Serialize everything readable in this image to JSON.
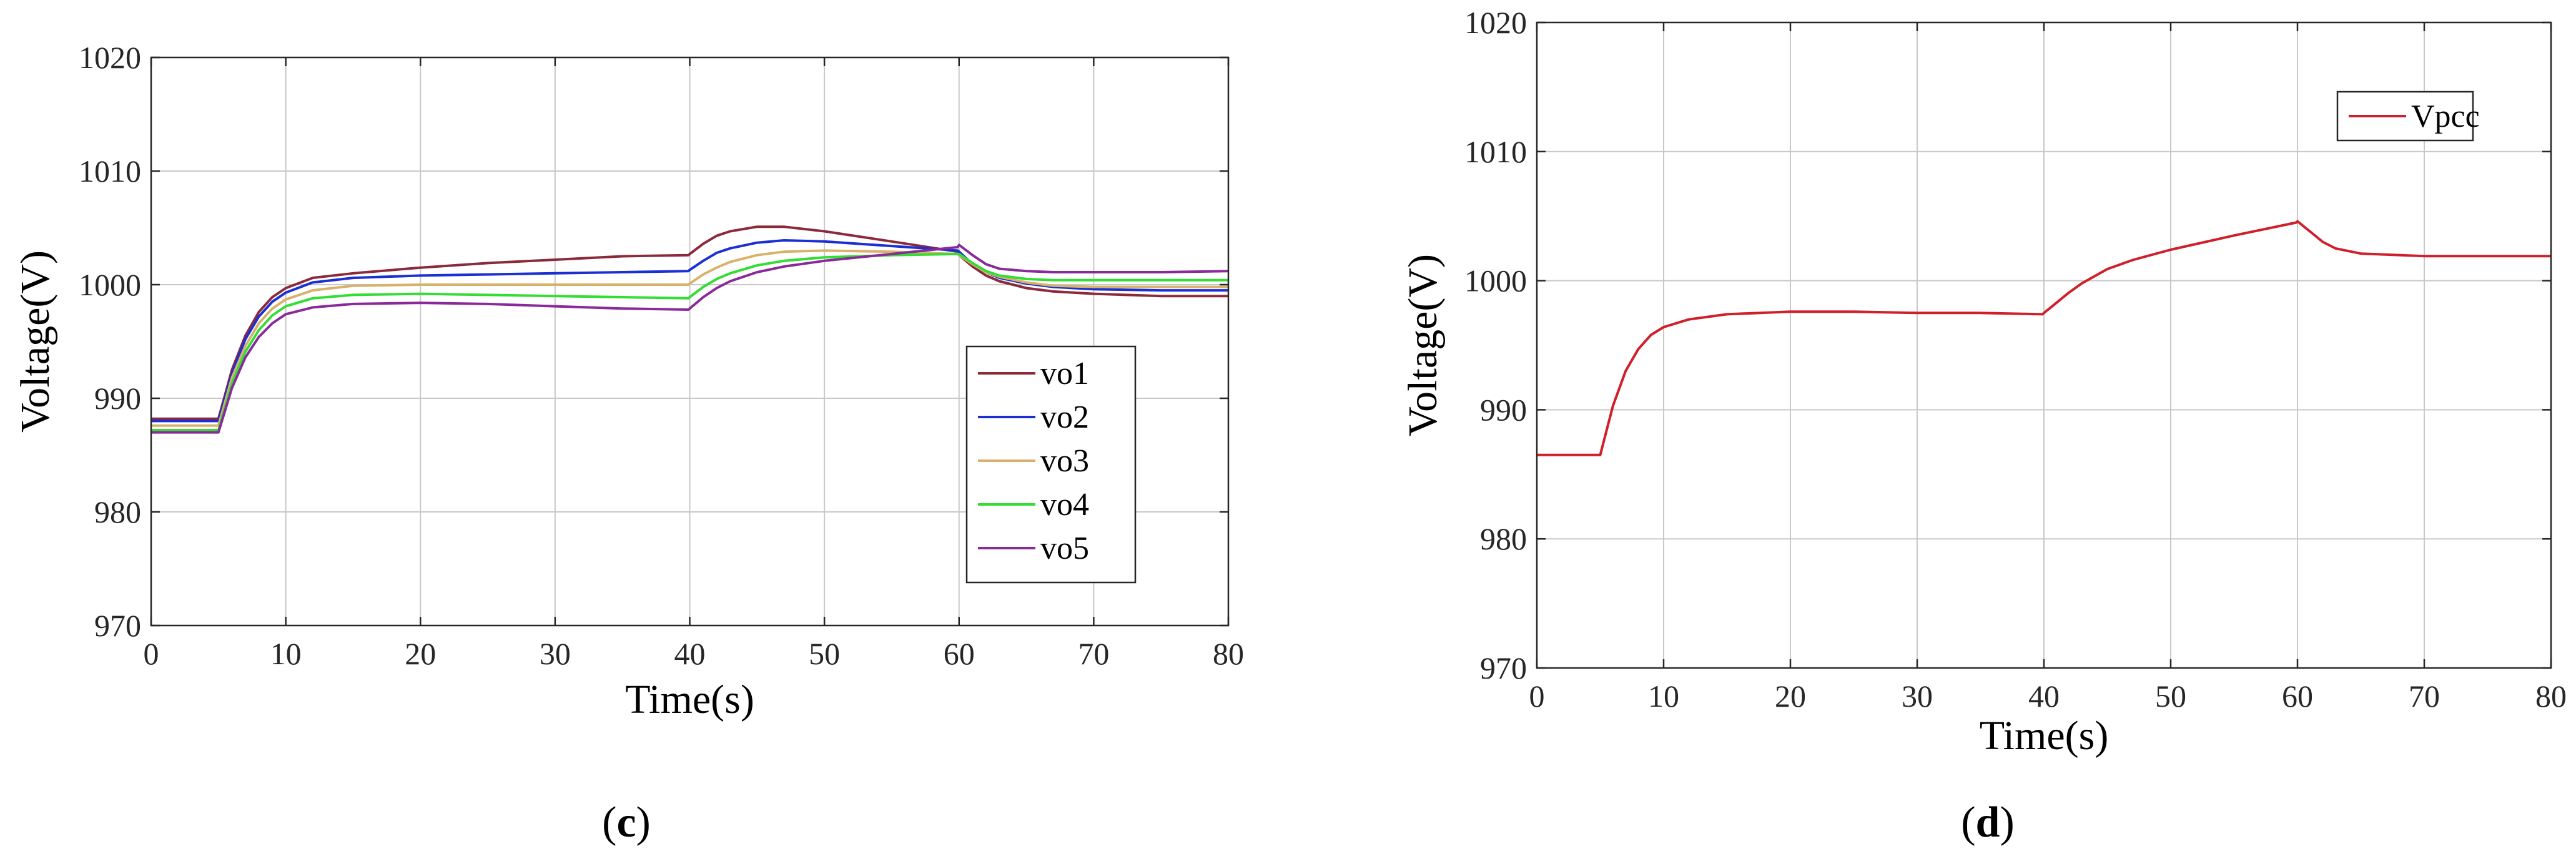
{
  "chart_data": [
    {
      "type": "line",
      "panel_label": "c",
      "title": "",
      "xlabel": "Time(s)",
      "ylabel": "Voltage(V)",
      "xlim": [
        0,
        80
      ],
      "ylim": [
        970,
        1020
      ],
      "xticks": [
        "0",
        "10",
        "20",
        "30",
        "40",
        "50",
        "60",
        "70",
        "80"
      ],
      "yticks": [
        "970",
        "980",
        "990",
        "1000",
        "1010",
        "1020"
      ],
      "grid": true,
      "legend_position": "center-right",
      "x": [
        0,
        4.9,
        5,
        6,
        7,
        8,
        9,
        10,
        12,
        15,
        20,
        25,
        30,
        35,
        39.9,
        40,
        41,
        42,
        43,
        45,
        47,
        50,
        55,
        59.9,
        60,
        61,
        62,
        63,
        65,
        67,
        70,
        75,
        80
      ],
      "series": [
        {
          "name": "vo1",
          "color": "#8b2a3a",
          "values": [
            988.2,
            988.2,
            988.2,
            992.5,
            995.5,
            997.6,
            998.9,
            999.7,
            1000.6,
            1001.0,
            1001.5,
            1001.9,
            1002.2,
            1002.5,
            1002.6,
            1002.7,
            1003.6,
            1004.3,
            1004.7,
            1005.1,
            1005.1,
            1004.7,
            1003.8,
            1002.9,
            1002.6,
            1001.6,
            1000.8,
            1000.3,
            999.7,
            999.4,
            999.2,
            999.0,
            999.0
          ]
        },
        {
          "name": "vo2",
          "color": "#1a2fd4",
          "values": [
            988.0,
            988.0,
            988.0,
            992.2,
            995.2,
            997.2,
            998.5,
            999.3,
            1000.2,
            1000.6,
            1000.8,
            1000.9,
            1001.0,
            1001.1,
            1001.2,
            1001.3,
            1002.1,
            1002.8,
            1003.2,
            1003.7,
            1003.9,
            1003.8,
            1003.4,
            1003.0,
            1002.9,
            1001.8,
            1001.1,
            1000.6,
            1000.1,
            999.8,
            999.6,
            999.5,
            999.5
          ]
        },
        {
          "name": "vo3",
          "color": "#d8b26a",
          "values": [
            987.6,
            987.6,
            987.6,
            991.8,
            994.6,
            996.6,
            997.9,
            998.7,
            999.5,
            999.9,
            1000.0,
            1000.0,
            1000.0,
            1000.0,
            1000.0,
            1000.1,
            1000.9,
            1001.5,
            1002.0,
            1002.6,
            1002.9,
            1003.0,
            1002.9,
            1002.7,
            1002.6,
            1001.8,
            1001.1,
            1000.7,
            1000.2,
            999.9,
            999.8,
            999.8,
            999.8
          ]
        },
        {
          "name": "vo4",
          "color": "#33dd33",
          "values": [
            987.2,
            987.2,
            987.2,
            991.3,
            994.1,
            996.0,
            997.3,
            998.1,
            998.8,
            999.1,
            999.2,
            999.1,
            999.0,
            998.9,
            998.8,
            998.9,
            999.8,
            1000.5,
            1001.0,
            1001.7,
            1002.1,
            1002.4,
            1002.6,
            1002.7,
            1002.7,
            1001.9,
            1001.2,
            1000.8,
            1000.5,
            1000.4,
            1000.4,
            1000.4,
            1000.4
          ]
        },
        {
          "name": "vo5",
          "color": "#8a2a9a",
          "values": [
            987.0,
            987.0,
            987.0,
            990.9,
            993.6,
            995.4,
            996.6,
            997.4,
            998.0,
            998.3,
            998.4,
            998.3,
            998.1,
            997.9,
            997.8,
            997.9,
            998.9,
            999.7,
            1000.3,
            1001.1,
            1001.6,
            1002.1,
            1002.7,
            1003.3,
            1003.5,
            1002.6,
            1001.8,
            1001.4,
            1001.2,
            1001.1,
            1001.1,
            1001.1,
            1001.2
          ]
        }
      ]
    },
    {
      "type": "line",
      "panel_label": "d",
      "title": "",
      "xlabel": "Time(s)",
      "ylabel": "Voltage(V)",
      "xlim": [
        0,
        80
      ],
      "ylim": [
        970,
        1020
      ],
      "xticks": [
        "0",
        "10",
        "20",
        "30",
        "40",
        "50",
        "60",
        "70",
        "80"
      ],
      "yticks": [
        "970",
        "980",
        "990",
        "1000",
        "1010",
        "1020"
      ],
      "grid": true,
      "legend_position": "top-right",
      "x": [
        0,
        4.9,
        5,
        6,
        7,
        8,
        9,
        10,
        12,
        15,
        20,
        25,
        30,
        35,
        39.9,
        40,
        41,
        42,
        43,
        45,
        47,
        50,
        55,
        59.9,
        60,
        61,
        62,
        63,
        65,
        70,
        75,
        80
      ],
      "series": [
        {
          "name": "Vpcc",
          "color": "#d01f2a",
          "values": [
            986.5,
            986.5,
            986.5,
            990.3,
            993.0,
            994.7,
            995.8,
            996.4,
            997.0,
            997.4,
            997.6,
            997.6,
            997.5,
            997.5,
            997.4,
            997.5,
            998.3,
            999.1,
            999.8,
            1000.9,
            1001.6,
            1002.4,
            1003.5,
            1004.5,
            1004.6,
            1003.8,
            1003.0,
            1002.5,
            1002.1,
            1001.9,
            1001.9,
            1001.9
          ]
        }
      ]
    }
  ]
}
